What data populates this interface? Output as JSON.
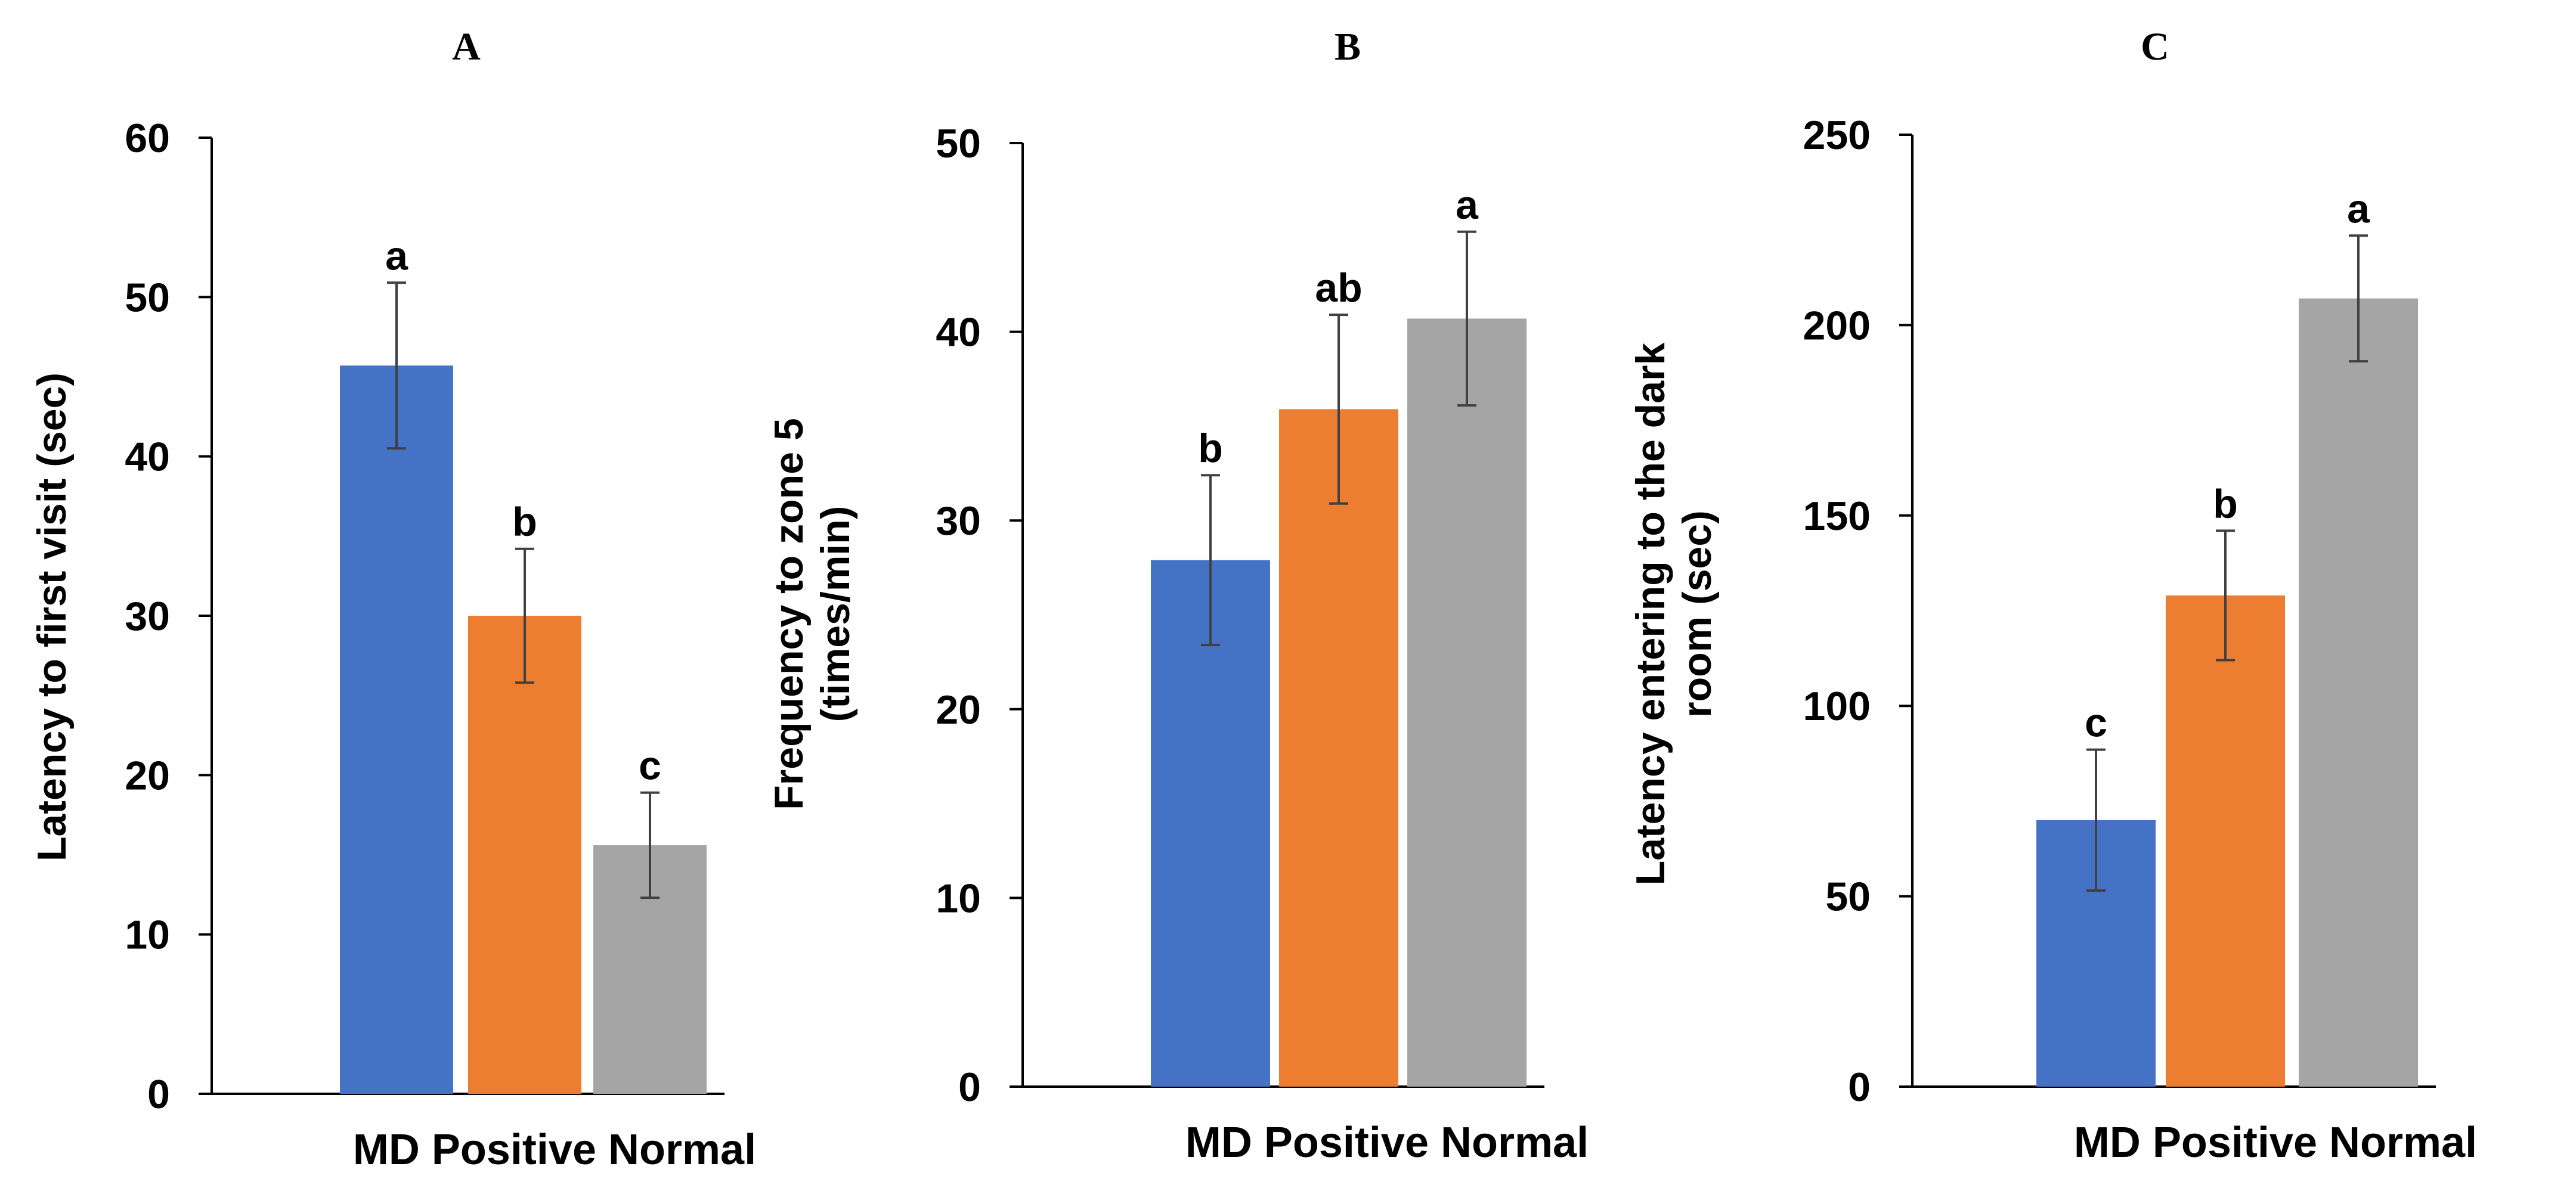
{
  "figure": {
    "colors": {
      "MD": "#4472C4",
      "Positive": "#ED7D31",
      "Normal": "#A5A5A5",
      "axis": "#000000",
      "error": "#404040"
    }
  },
  "chart_data": [
    {
      "type": "bar",
      "panel_label": "A",
      "ylabel": [
        "Latency to first visit (sec)"
      ],
      "xlabel": "MD Positive Normal",
      "categories": [
        "MD",
        "Positive",
        "Normal"
      ],
      "values": [
        45.7,
        30.0,
        15.6
      ],
      "errors": [
        5.2,
        4.2,
        3.3
      ],
      "significance": [
        "a",
        "b",
        "c"
      ],
      "ylim": [
        0,
        60
      ],
      "yticks": [
        0,
        10,
        20,
        30,
        40,
        50,
        60
      ],
      "ytick_labels": [
        "0",
        "10",
        "20",
        "30",
        "40",
        "50",
        "60"
      ],
      "grid": false
    },
    {
      "type": "bar",
      "panel_label": "B",
      "ylabel": [
        "Frequency to zone 5",
        "(times/min)"
      ],
      "xlabel": "MD Positive Normal",
      "categories": [
        "MD",
        "Positive",
        "Normal"
      ],
      "values": [
        27.9,
        35.9,
        40.7
      ],
      "errors": [
        4.5,
        5.0,
        4.6
      ],
      "significance": [
        "b",
        "ab",
        "a"
      ],
      "ylim": [
        0,
        50
      ],
      "yticks": [
        0,
        10,
        20,
        30,
        40,
        50
      ],
      "ytick_labels": [
        "0",
        "10",
        "20",
        "30",
        "40",
        "50"
      ],
      "grid": false
    },
    {
      "type": "bar",
      "panel_label": "C",
      "ylabel": [
        "Latency entering to the dark",
        "room (sec)"
      ],
      "xlabel": "MD Positive Normal",
      "categories": [
        "MD",
        "Positive",
        "Normal"
      ],
      "values": [
        70.0,
        129.0,
        207.0
      ],
      "errors": [
        18.5,
        17.0,
        16.5
      ],
      "significance": [
        "c",
        "b",
        "a"
      ],
      "ylim": [
        0,
        250
      ],
      "yticks": [
        0,
        50,
        100,
        150,
        200,
        250
      ],
      "ytick_labels": [
        "0",
        "50",
        "100",
        "150",
        "200",
        "250"
      ],
      "grid": false
    }
  ]
}
